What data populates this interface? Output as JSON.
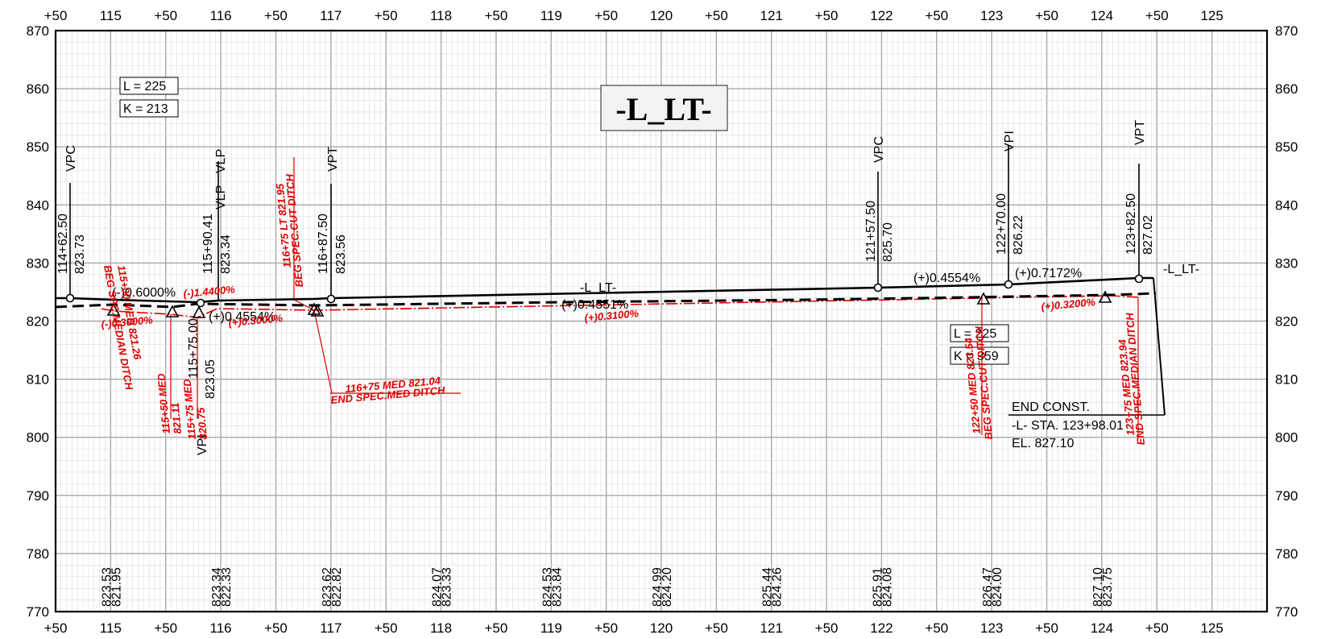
{
  "sheet": {
    "title": "-L_LT-",
    "x_labels": [
      "+50",
      "115",
      "+50",
      "116",
      "+50",
      "117",
      "+50",
      "118",
      "+50",
      "119",
      "+50",
      "120",
      "+50",
      "121",
      "+50",
      "122",
      "+50",
      "123",
      "+50",
      "124",
      "+50",
      "125"
    ],
    "y_labels": [
      "870",
      "860",
      "850",
      "840",
      "830",
      "820",
      "810",
      "800",
      "790",
      "780",
      "770"
    ]
  },
  "boxes": {
    "L1": "L = 225",
    "K1": "K = 213",
    "L2": "L = 225",
    "K2": "K = 359"
  },
  "pi_labels": [
    {
      "tag": "VPC",
      "station": "114+62.50",
      "elev": "823.73"
    },
    {
      "tag": "VLP",
      "station": "115+90.41",
      "elev": "823.34"
    },
    {
      "tag": "VPT",
      "station": "116+87.50",
      "elev": "823.56"
    },
    {
      "tag": "VPC",
      "station": "121+57.50",
      "elev": "825.70"
    },
    {
      "tag": "VPI",
      "station": "122+70.00",
      "elev": "826.22"
    },
    {
      "tag": "VPT",
      "station": "123+82.50",
      "elev": "827.02"
    }
  ],
  "extra_labels": {
    "vlp_top": "VLP",
    "vpi_low_station": "115+75.00",
    "vpi_low_elev": "823.05",
    "vpi_low_tag": "VPI",
    "alignment_mid": "-L_LT-",
    "alignment_end": "-L_LT-"
  },
  "grades": {
    "g1": "(-)0.6000%",
    "g2": "(+)0.4554%",
    "g3": "(+)0.4551%",
    "g4": "(+)0.4554%",
    "g5": "(+)0.7172%"
  },
  "end_const": [
    "END CONST.",
    "-L- STA. 123+98.01",
    "EL. 827.10"
  ],
  "ditch": {
    "beg_median": [
      "115+00 MED 821.26",
      "BEG SPC.MEDIAN DITCH"
    ],
    "med_11550": [
      "115+50 MED",
      "821.11"
    ],
    "med_11575": [
      "115+75 MED",
      "820.75"
    ],
    "beg_cut": [
      "116+75 LT 821.95",
      "BEG SPEC.CUT DITCH"
    ],
    "end_med": [
      "116+75 MED 821.04",
      "END SPEC.MED DITCH"
    ],
    "beg_cut2": [
      "122+50 MED 823.54",
      "BEG SPEC.CUT DITCH"
    ],
    "end_med2": [
      "123+75 MED 823.94",
      "END SPEC.MEDIAN DITCH"
    ],
    "grade_a": "(-)0.3000%",
    "grade_b": "(-)1.4400%",
    "grade_c": "(+)0.3000%",
    "grade_d": "(+)0.3100%",
    "grade_e": "(+)0.3200%"
  },
  "bottom_elevations": [
    [
      "823.53",
      "821.95"
    ],
    [
      "823.34",
      "822.33"
    ],
    [
      "823.62",
      "822.82"
    ],
    [
      "824.07",
      "823.33"
    ],
    [
      "824.53",
      "823.84"
    ],
    [
      "824.99",
      "824.20"
    ],
    [
      "825.44",
      "824.26"
    ],
    [
      "825.91",
      "824.08"
    ],
    [
      "826.47",
      "824.00"
    ],
    [
      "827.10",
      "823.75"
    ]
  ],
  "colors": {
    "grid_major": "#a8a8a8",
    "grid_minor": "#dcdcdc",
    "profile": "#000000",
    "ditch": "#e00000"
  }
}
